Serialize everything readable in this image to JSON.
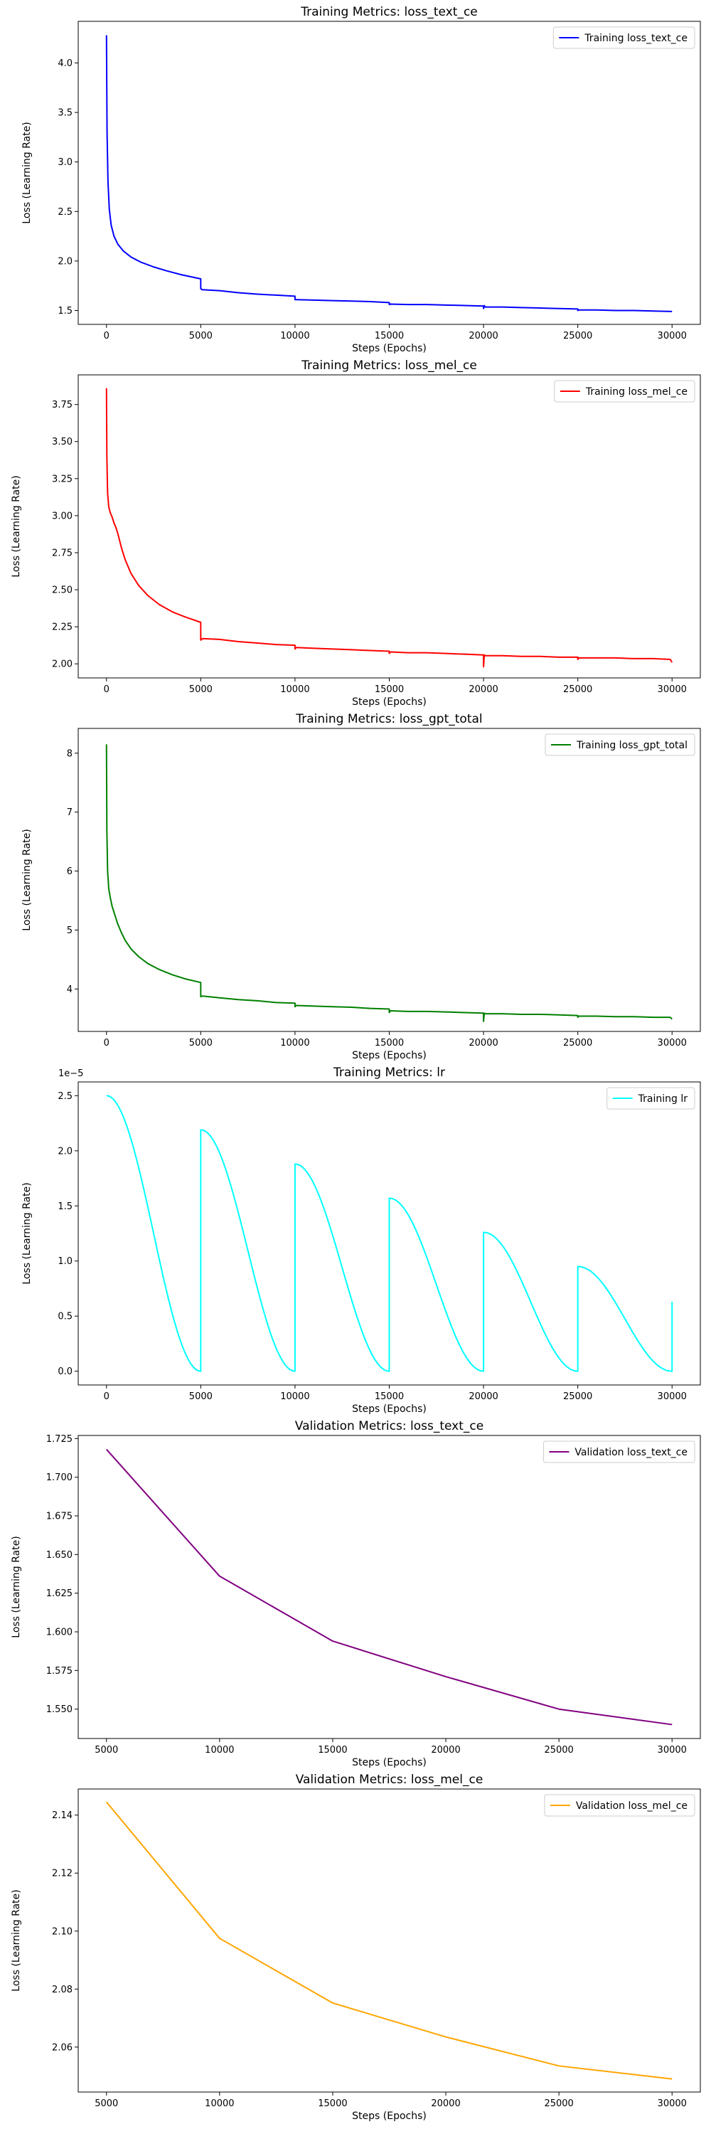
{
  "chart_data": [
    {
      "type": "line",
      "title": "Training Metrics: loss_text_ce",
      "xlabel": "Steps (Epochs)",
      "ylabel": "Loss (Learning Rate)",
      "xlim": [
        -1500,
        31500
      ],
      "ylim": [
        1.36,
        4.42
      ],
      "xticks": [
        0,
        5000,
        10000,
        15000,
        20000,
        25000,
        30000
      ],
      "yticks": [
        1.5,
        2.0,
        2.5,
        3.0,
        3.5,
        4.0
      ],
      "ytick_labels": [
        "1.5",
        "2.0",
        "2.5",
        "3.0",
        "3.5",
        "4.0"
      ],
      "legend": "upper right",
      "series": [
        {
          "name": "Training loss_text_ce",
          "color": "#0000ff",
          "x": [
            0,
            30,
            80,
            150,
            250,
            400,
            600,
            900,
            1300,
            1800,
            2500,
            3200,
            4000,
            4999,
            5000,
            5080,
            6000,
            7000,
            8000,
            9000,
            9999,
            10000,
            10060,
            11000,
            12000,
            13000,
            14000,
            14999,
            15000,
            15060,
            16000,
            17000,
            18000,
            19000,
            19999,
            20000,
            20040,
            20080,
            21000,
            22000,
            23000,
            24000,
            24999,
            25000,
            25060,
            26000,
            27000,
            28000,
            29000,
            30000
          ],
          "values": [
            4.28,
            3.3,
            2.8,
            2.52,
            2.36,
            2.25,
            2.17,
            2.1,
            2.04,
            1.99,
            1.94,
            1.9,
            1.86,
            1.82,
            1.72,
            1.71,
            1.7,
            1.68,
            1.665,
            1.655,
            1.645,
            1.61,
            1.61,
            1.605,
            1.6,
            1.595,
            1.59,
            1.58,
            1.56,
            1.565,
            1.56,
            1.56,
            1.555,
            1.55,
            1.545,
            1.52,
            1.55,
            1.535,
            1.535,
            1.53,
            1.525,
            1.52,
            1.515,
            1.5,
            1.505,
            1.505,
            1.5,
            1.5,
            1.495,
            1.49
          ]
        }
      ]
    },
    {
      "type": "line",
      "title": "Training Metrics: loss_mel_ce",
      "xlabel": "Steps (Epochs)",
      "ylabel": "Loss (Learning Rate)",
      "xlim": [
        -1500,
        31500
      ],
      "ylim": [
        1.905,
        3.95
      ],
      "xticks": [
        0,
        5000,
        10000,
        15000,
        20000,
        25000,
        30000
      ],
      "yticks": [
        2.0,
        2.25,
        2.5,
        2.75,
        3.0,
        3.25,
        3.5,
        3.75
      ],
      "ytick_labels": [
        "2.00",
        "2.25",
        "2.50",
        "2.75",
        "3.00",
        "3.25",
        "3.50",
        "3.75"
      ],
      "legend": "upper right",
      "series": [
        {
          "name": "Training loss_mel_ce",
          "color": "#ff0000",
          "x": [
            0,
            20,
            60,
            120,
            200,
            300,
            400,
            500,
            600,
            800,
            1000,
            1300,
            1700,
            2200,
            2800,
            3500,
            4200,
            4999,
            5000,
            5100,
            6000,
            7000,
            8000,
            9000,
            9999,
            10000,
            10060,
            11000,
            12000,
            13000,
            14000,
            14999,
            15000,
            15060,
            16000,
            17000,
            18000,
            19000,
            19999,
            20000,
            20040,
            20080,
            21000,
            22000,
            23000,
            24000,
            24999,
            25000,
            25060,
            26000,
            27000,
            28000,
            29000,
            29900,
            30000
          ],
          "values": [
            3.86,
            3.4,
            3.15,
            3.06,
            3.02,
            2.99,
            2.95,
            2.92,
            2.88,
            2.78,
            2.7,
            2.61,
            2.53,
            2.46,
            2.4,
            2.35,
            2.315,
            2.28,
            2.16,
            2.17,
            2.165,
            2.15,
            2.14,
            2.13,
            2.125,
            2.1,
            2.11,
            2.105,
            2.1,
            2.095,
            2.09,
            2.085,
            2.07,
            2.08,
            2.075,
            2.075,
            2.07,
            2.065,
            2.06,
            1.98,
            2.06,
            2.055,
            2.055,
            2.05,
            2.05,
            2.045,
            2.045,
            2.03,
            2.04,
            2.04,
            2.04,
            2.035,
            2.035,
            2.03,
            2.01
          ]
        }
      ]
    },
    {
      "type": "line",
      "title": "Training Metrics: loss_gpt_total",
      "xlabel": "Steps (Epochs)",
      "ylabel": "Loss (Learning Rate)",
      "xlim": [
        -1500,
        31500
      ],
      "ylim": [
        3.28,
        8.42
      ],
      "xticks": [
        0,
        5000,
        10000,
        15000,
        20000,
        25000,
        30000
      ],
      "yticks": [
        4,
        5,
        6,
        7,
        8
      ],
      "ytick_labels": [
        "4",
        "5",
        "6",
        "7",
        "8"
      ],
      "legend": "upper right",
      "series": [
        {
          "name": "Training loss_gpt_total",
          "color": "#008000",
          "x": [
            0,
            20,
            60,
            120,
            200,
            300,
            400,
            500,
            600,
            800,
            1000,
            1300,
            1700,
            2200,
            2800,
            3500,
            4200,
            4999,
            5000,
            5100,
            6000,
            7000,
            8000,
            9000,
            9999,
            10000,
            10060,
            11000,
            12000,
            13000,
            14000,
            14999,
            15000,
            15060,
            16000,
            17000,
            18000,
            19000,
            19999,
            20000,
            20040,
            20080,
            21000,
            22000,
            23000,
            24000,
            24999,
            25000,
            25060,
            26000,
            27000,
            28000,
            29000,
            29900,
            30000
          ],
          "values": [
            8.15,
            6.7,
            6.0,
            5.7,
            5.55,
            5.4,
            5.3,
            5.2,
            5.1,
            4.95,
            4.82,
            4.68,
            4.55,
            4.43,
            4.33,
            4.24,
            4.17,
            4.11,
            3.87,
            3.88,
            3.85,
            3.82,
            3.8,
            3.77,
            3.76,
            3.7,
            3.72,
            3.71,
            3.7,
            3.69,
            3.67,
            3.66,
            3.6,
            3.63,
            3.62,
            3.62,
            3.61,
            3.6,
            3.59,
            3.45,
            3.59,
            3.58,
            3.58,
            3.57,
            3.57,
            3.56,
            3.55,
            3.52,
            3.54,
            3.54,
            3.53,
            3.53,
            3.52,
            3.52,
            3.49
          ]
        }
      ]
    },
    {
      "type": "line",
      "title": "Training Metrics: lr",
      "xlabel": "Steps (Epochs)",
      "ylabel": "Loss (Learning Rate)",
      "offset_text": "1e−5",
      "xlim": [
        -1500,
        31500
      ],
      "ylim": [
        -0.125,
        2.625
      ],
      "y_scale_note": "values in units of 1e-5",
      "xticks": [
        0,
        5000,
        10000,
        15000,
        20000,
        25000,
        30000
      ],
      "yticks": [
        0.0,
        0.5,
        1.0,
        1.5,
        2.0,
        2.5
      ],
      "ytick_labels": [
        "0.0",
        "0.5",
        "1.0",
        "1.5",
        "2.0",
        "2.5"
      ],
      "legend": "upper right",
      "series": [
        {
          "name": "Training lr",
          "color": "#00ffff",
          "cycles": [
            {
              "start": 0,
              "end": 5000,
              "peak": 2.5
            },
            {
              "start": 5000,
              "end": 10000,
              "peak": 2.19
            },
            {
              "start": 10000,
              "end": 15000,
              "peak": 1.88
            },
            {
              "start": 15000,
              "end": 20000,
              "peak": 1.57
            },
            {
              "start": 20000,
              "end": 25000,
              "peak": 1.26
            },
            {
              "start": 25000,
              "end": 30000,
              "peak": 0.95
            }
          ],
          "final_point": {
            "x": 30000,
            "value": 0.63
          }
        }
      ]
    },
    {
      "type": "line",
      "title": "Validation Metrics: loss_text_ce",
      "xlabel": "Steps (Epochs)",
      "ylabel": "Loss (Learning Rate)",
      "xlim": [
        3750,
        31250
      ],
      "ylim": [
        1.531,
        1.727
      ],
      "xticks": [
        5000,
        10000,
        15000,
        20000,
        25000,
        30000
      ],
      "yticks": [
        1.55,
        1.575,
        1.6,
        1.625,
        1.65,
        1.675,
        1.7,
        1.725
      ],
      "ytick_labels": [
        "1.550",
        "1.575",
        "1.600",
        "1.625",
        "1.650",
        "1.675",
        "1.700",
        "1.725"
      ],
      "legend": "upper right",
      "series": [
        {
          "name": "Validation loss_text_ce",
          "color": "#800080",
          "x": [
            5000,
            10000,
            15000,
            20000,
            25000,
            30000
          ],
          "values": [
            1.718,
            1.636,
            1.594,
            1.571,
            1.55,
            1.54
          ]
        }
      ]
    },
    {
      "type": "line",
      "title": "Validation Metrics: loss_mel_ce",
      "xlabel": "Steps (Epochs)",
      "ylabel": "Loss (Learning Rate)",
      "xlim": [
        3750,
        31250
      ],
      "ylim": [
        2.0445,
        2.149
      ],
      "xticks": [
        5000,
        10000,
        15000,
        20000,
        25000,
        30000
      ],
      "yticks": [
        2.06,
        2.08,
        2.1,
        2.12,
        2.14
      ],
      "ytick_labels": [
        "2.06",
        "2.08",
        "2.10",
        "2.12",
        "2.14"
      ],
      "legend": "upper right",
      "series": [
        {
          "name": "Validation loss_mel_ce",
          "color": "#ffa500",
          "x": [
            5000,
            10000,
            15000,
            20000,
            25000,
            30000
          ],
          "values": [
            2.1445,
            2.0975,
            2.0752,
            2.0635,
            2.0535,
            2.049
          ]
        }
      ]
    }
  ]
}
